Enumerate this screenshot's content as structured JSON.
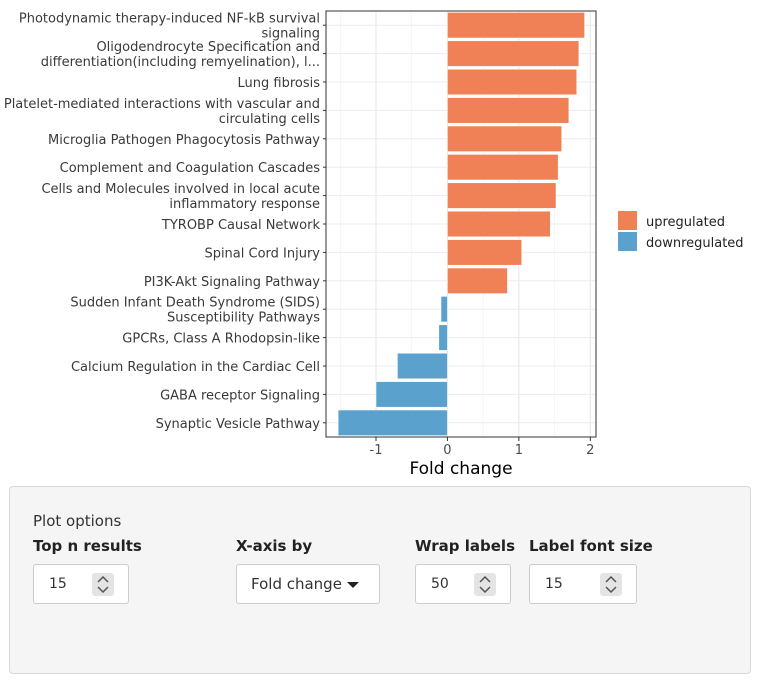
{
  "chart_data": {
    "type": "bar",
    "orientation": "horizontal",
    "xlabel": "Fold change",
    "xlim": [
      -1.7,
      2.08
    ],
    "xticks": [
      -1,
      0,
      1,
      2
    ],
    "grid": true,
    "legend_position": "right",
    "legend": [
      {
        "label": "upregulated",
        "color": "#f08055"
      },
      {
        "label": "downregulated",
        "color": "#5aa2cd"
      }
    ],
    "bars": [
      {
        "label": [
          "Photodynamic therapy-induced NF-kB survival",
          "signaling"
        ],
        "value": 1.92,
        "group": "upregulated"
      },
      {
        "label": [
          "Oligodendrocyte Specification and",
          "differentiation(including remyelination), l..."
        ],
        "value": 1.84,
        "group": "upregulated"
      },
      {
        "label": [
          "Lung fibrosis"
        ],
        "value": 1.81,
        "group": "upregulated"
      },
      {
        "label": [
          "Platelet-mediated interactions with vascular and",
          "circulating cells"
        ],
        "value": 1.7,
        "group": "upregulated"
      },
      {
        "label": [
          "Microglia Pathogen Phagocytosis Pathway"
        ],
        "value": 1.6,
        "group": "upregulated"
      },
      {
        "label": [
          "Complement and Coagulation Cascades"
        ],
        "value": 1.55,
        "group": "upregulated"
      },
      {
        "label": [
          "Cells and Molecules involved in local acute",
          "inflammatory response"
        ],
        "value": 1.52,
        "group": "upregulated"
      },
      {
        "label": [
          "TYROBP Causal Network"
        ],
        "value": 1.44,
        "group": "upregulated"
      },
      {
        "label": [
          "Spinal Cord Injury"
        ],
        "value": 1.04,
        "group": "upregulated"
      },
      {
        "label": [
          "PI3K-Akt Signaling Pathway"
        ],
        "value": 0.84,
        "group": "upregulated"
      },
      {
        "label": [
          "Sudden Infant Death Syndrome (SIDS)",
          "Susceptibility Pathways"
        ],
        "value": -0.09,
        "group": "downregulated"
      },
      {
        "label": [
          "GPCRs, Class A Rhodopsin-like"
        ],
        "value": -0.12,
        "group": "downregulated"
      },
      {
        "label": [
          "Calcium Regulation in the Cardiac Cell"
        ],
        "value": -0.7,
        "group": "downregulated"
      },
      {
        "label": [
          "GABA receptor Signaling"
        ],
        "value": -1.0,
        "group": "downregulated"
      },
      {
        "label": [
          "Synaptic Vesicle Pathway"
        ],
        "value": -1.53,
        "group": "downregulated"
      }
    ]
  },
  "options": {
    "title": "Plot options",
    "top_n": {
      "label": "Top n results",
      "value": "15"
    },
    "x_axis": {
      "label": "X-axis by",
      "value": "Fold change"
    },
    "wrap": {
      "label": "Wrap labels",
      "value": "50"
    },
    "font_size": {
      "label": "Label font size",
      "value": "15"
    }
  }
}
